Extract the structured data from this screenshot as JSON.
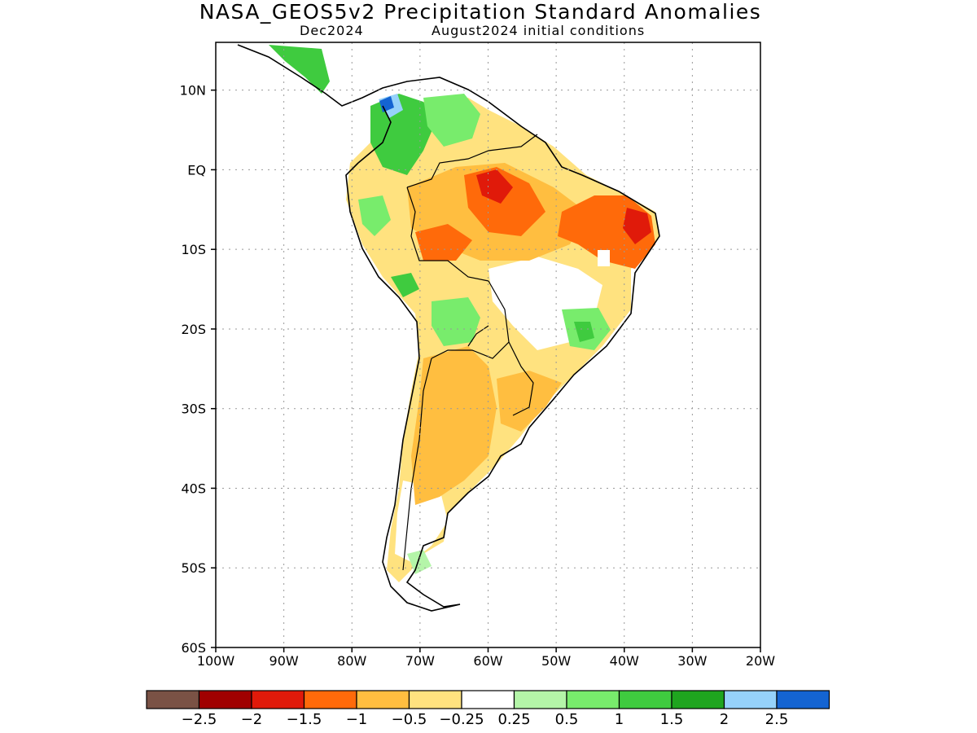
{
  "title": "NASA_GEOS5v2 Precipitation Standard Anomalies",
  "subtitle_left": "Dec2024",
  "subtitle_right": "August2024 initial conditions",
  "axes": {
    "lat_labels": [
      "10N",
      "EQ",
      "10S",
      "20S",
      "30S",
      "40S",
      "50S",
      "60S"
    ],
    "lon_labels": [
      "100W",
      "90W",
      "80W",
      "70W",
      "60W",
      "50W",
      "40W",
      "30W",
      "20W"
    ],
    "lat_range": [
      -60,
      16
    ],
    "lon_range": [
      -100,
      -20
    ],
    "grid": "dotted"
  },
  "colorbar": {
    "colors": [
      "#7a5245",
      "#a00000",
      "#e01a0a",
      "#ff6a0a",
      "#ffbe40",
      "#ffe27f",
      "#ffffff",
      "#b4f5a8",
      "#78ec6c",
      "#3fcb3f",
      "#1fa51f",
      "#96d2fa",
      "#1464d2"
    ],
    "labels": [
      "−2.5",
      "−2",
      "−1.5",
      "−1",
      "−0.5",
      "−0.25",
      "0.25",
      "0.5",
      "1",
      "1.5",
      "2",
      "2.5"
    ]
  },
  "anomaly_regions": [
    {
      "category": "wet",
      "color": "#3fcb3f",
      "area": "Colombia / western Venezuela"
    },
    {
      "category": "very wet",
      "color": "#1464d2",
      "area": "northern Colombia"
    },
    {
      "category": "dry",
      "color": "#ff6a0a",
      "area": "NE Brazil"
    },
    {
      "category": "dry",
      "color": "#e01a0a",
      "area": "central Amazon"
    },
    {
      "category": "moderately dry",
      "color": "#ffbe40",
      "area": "Argentina / southern Brazil"
    },
    {
      "category": "wet",
      "color": "#78ec6c",
      "area": "Bolivia / Paraguay"
    }
  ]
}
